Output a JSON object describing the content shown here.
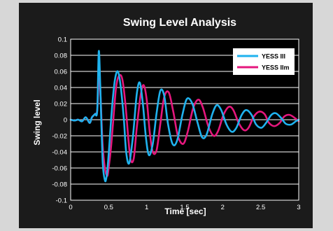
{
  "chart_data": {
    "type": "line",
    "title": "Swing Level Analysis",
    "xlabel": "Time [sec]",
    "ylabel": "Swing level",
    "xlim": [
      0,
      3
    ],
    "ylim": [
      -0.1,
      0.1
    ],
    "xticks": [
      "0",
      "0.5",
      "1",
      "1.5",
      "2",
      "2.5",
      "3"
    ],
    "yticks": [
      "0.1",
      "0.08",
      "0.06",
      "0.04",
      "0.02",
      "0",
      "-0.02",
      "-0.04",
      "-0.06",
      "-0.08",
      "-0.1"
    ],
    "grid": true,
    "legend_position": "top-right",
    "series": [
      {
        "name": "YESS III",
        "color": "#1fb2ee",
        "x": [
          0,
          0.05,
          0.1,
          0.15,
          0.2,
          0.25,
          0.28,
          0.32,
          0.35,
          0.37,
          0.39,
          0.42,
          0.45,
          0.47,
          0.49,
          0.51,
          0.54,
          0.58,
          0.62,
          0.66,
          0.7,
          0.73,
          0.77,
          0.82,
          0.87,
          0.91,
          0.95,
          0.99,
          1.03,
          1.08,
          1.13,
          1.18,
          1.23,
          1.28,
          1.34,
          1.4,
          1.47,
          1.53,
          1.6,
          1.67,
          1.73,
          1.79,
          1.86,
          1.92,
          1.98,
          2.05,
          2.12,
          2.18,
          2.25,
          2.31,
          2.38,
          2.44,
          2.51,
          2.57,
          2.64,
          2.7,
          2.77,
          2.83,
          2.9,
          2.96,
          3.0
        ],
        "y": [
          0,
          -0.001,
          0,
          -0.002,
          0.003,
          -0.004,
          0.003,
          0.007,
          0.012,
          0.085,
          0.04,
          -0.05,
          -0.075,
          -0.072,
          -0.055,
          -0.03,
          0.01,
          0.048,
          0.06,
          0.04,
          0.0,
          -0.04,
          -0.054,
          -0.02,
          0.032,
          0.046,
          0.02,
          -0.022,
          -0.044,
          -0.03,
          0.008,
          0.036,
          0.03,
          -0.005,
          -0.03,
          -0.026,
          0.006,
          0.026,
          0.02,
          -0.004,
          -0.022,
          -0.018,
          0.006,
          0.018,
          0.012,
          -0.006,
          -0.015,
          -0.01,
          0.006,
          0.012,
          0.006,
          -0.006,
          -0.01,
          -0.004,
          0.006,
          0.008,
          0.002,
          -0.005,
          -0.006,
          -0.002,
          0.0
        ]
      },
      {
        "name": "YESS IIm",
        "color": "#e5177d",
        "x": [
          0,
          0.05,
          0.1,
          0.15,
          0.2,
          0.25,
          0.28,
          0.32,
          0.35,
          0.37,
          0.39,
          0.42,
          0.45,
          0.48,
          0.5,
          0.53,
          0.57,
          0.6,
          0.64,
          0.68,
          0.72,
          0.76,
          0.79,
          0.83,
          0.87,
          0.92,
          0.96,
          1.0,
          1.04,
          1.08,
          1.13,
          1.18,
          1.23,
          1.29,
          1.35,
          1.41,
          1.48,
          1.54,
          1.61,
          1.68,
          1.74,
          1.81,
          1.88,
          1.94,
          2.01,
          2.08,
          2.14,
          2.21,
          2.28,
          2.34,
          2.41,
          2.48,
          2.55,
          2.61,
          2.68,
          2.75,
          2.81,
          2.88,
          2.95,
          3.0
        ],
        "y": [
          0,
          -0.001,
          0,
          -0.002,
          0.003,
          -0.004,
          0.003,
          0.007,
          0.012,
          0.05,
          0.035,
          -0.03,
          -0.06,
          -0.07,
          -0.06,
          -0.035,
          0.01,
          0.042,
          0.055,
          0.05,
          0.02,
          -0.025,
          -0.05,
          -0.048,
          -0.01,
          0.03,
          0.043,
          0.025,
          -0.015,
          -0.04,
          -0.038,
          -0.005,
          0.028,
          0.034,
          0.01,
          -0.02,
          -0.03,
          -0.015,
          0.014,
          0.025,
          0.015,
          -0.008,
          -0.02,
          -0.014,
          0.006,
          0.016,
          0.012,
          -0.004,
          -0.013,
          -0.01,
          0.004,
          0.01,
          0.007,
          -0.004,
          -0.008,
          -0.004,
          0.004,
          0.006,
          0.002,
          -0.002
        ]
      }
    ]
  }
}
